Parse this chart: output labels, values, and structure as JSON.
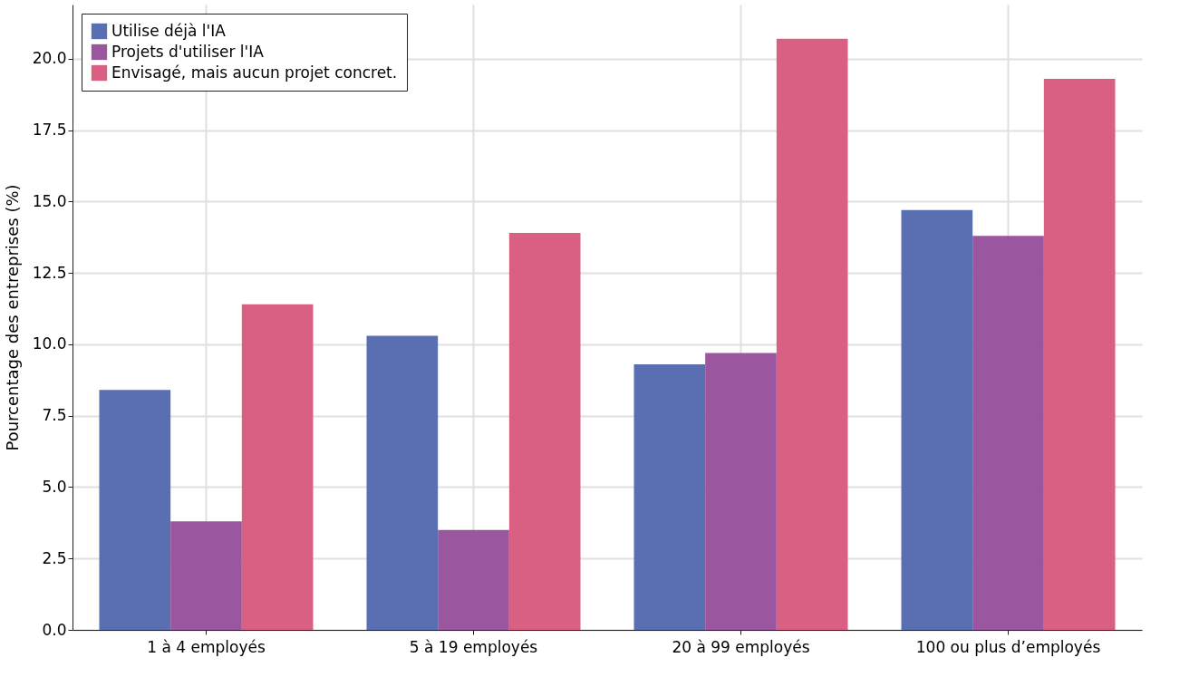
{
  "chart_data": {
    "type": "bar",
    "ylabel": "Pourcentage des entreprises (%)",
    "categories": [
      "1 à 4 employés",
      "5 à 19 employés",
      "20 à 99 employés",
      "100 ou plus d’employés"
    ],
    "series": [
      {
        "name": "Utilise déjà l'IA",
        "color": "#5a6fb2",
        "values": [
          8.4,
          10.3,
          9.3,
          14.7
        ]
      },
      {
        "name": "Projets d'utiliser l'IA",
        "color": "#9b56a0",
        "values": [
          3.8,
          3.5,
          9.7,
          13.8
        ]
      },
      {
        "name": "Envisagé, mais aucun projet concret.",
        "color": "#d96083",
        "values": [
          11.4,
          13.9,
          20.7,
          19.3
        ]
      }
    ],
    "ylim": [
      0,
      21.9
    ],
    "yticks": [
      {
        "value": 0,
        "label": "0.0"
      },
      2.5,
      {
        "value": 5,
        "label": "5.0"
      },
      7.5,
      {
        "value": 10,
        "label": "10.0"
      },
      12.5,
      {
        "value": 15,
        "label": "15.0"
      },
      17.5,
      {
        "value": 20,
        "label": "20.0"
      }
    ],
    "grid": true,
    "legend": "top left"
  }
}
